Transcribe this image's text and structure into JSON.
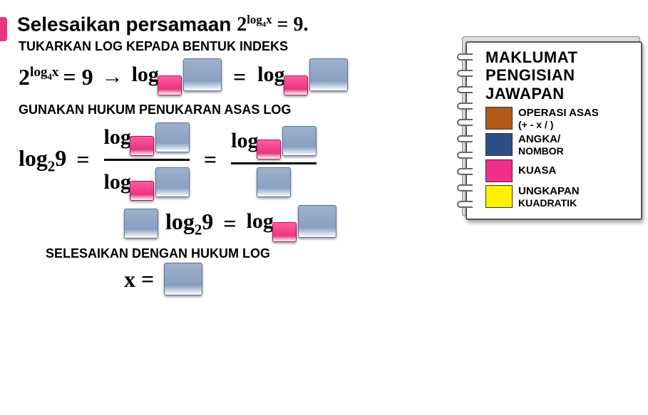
{
  "title_prefix": "Selesaikan persamaan ",
  "main_equation_base": "2",
  "main_equation_exp": "log",
  "main_equation_exp_sub": "4",
  "main_equation_exp_var": "x",
  "main_equation_rhs": " = 9.",
  "step1_head": "TUKARKAN LOG KEPADA BENTUK INDEKS",
  "step1_lhs_base": "2",
  "step1_lhs_exp_word": "log",
  "step1_lhs_exp_sub": "4",
  "step1_lhs_exp_var": "x",
  "step1_eq9": " = 9 ",
  "arrow_glyph": "→",
  "log_word": "log",
  "equals_sign": "=",
  "step2_head": "GUNAKAN HUKUM PENUKARAN ASAS LOG",
  "step2_lhs": "log",
  "step2_lhs_sub": "2",
  "step2_lhs_arg": "9",
  "step2b_mid": "log",
  "step2b_mid_sub": "2",
  "step2b_mid_arg": "9",
  "step2b_rhs": "log",
  "step3_head": "SELESAIKAN DENGAN HUKUM LOG",
  "step3_lhs": "x =",
  "legend": {
    "heading_l1": "MAKLUMAT",
    "heading_l2": "PENGISIAN",
    "heading_l3": "JAWAPAN",
    "rows": [
      {
        "color": "#b05a17",
        "label": "OPERASI ASAS",
        "sub": "(+ - x / )"
      },
      {
        "color": "#2b4f86",
        "label": "ANGKA/",
        "sub": "NOMBOR"
      },
      {
        "color": "#ef2f8a",
        "label": "KUASA",
        "sub": ""
      },
      {
        "color": "#fff200",
        "label": "UNGKAPAN",
        "sub": "KUADRATIK"
      }
    ]
  },
  "style": {
    "number_slot_color": "#8aa0c2",
    "power_slot_color": "#e7357e",
    "bg": "#ffffff"
  }
}
